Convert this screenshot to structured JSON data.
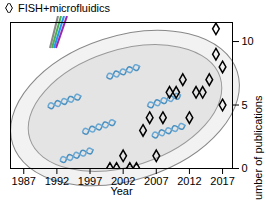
{
  "chart_data": {
    "type": "scatter",
    "series": [
      {
        "name": "FISH+microfluidics",
        "color": "#000000",
        "marker": "diamond",
        "x": [
          2000,
          2001,
          2002,
          2003,
          2004,
          2005,
          2006,
          2007,
          2008,
          2009,
          2010,
          2011,
          2012,
          2013,
          2014,
          2015,
          2016,
          2016,
          2017,
          2017
        ],
        "values": [
          0,
          0,
          1,
          0,
          0,
          3,
          4,
          1,
          4,
          6,
          6,
          7,
          4,
          6,
          6,
          7,
          11,
          9,
          8,
          5
        ]
      }
    ],
    "x_label": "Year",
    "y_label": "Number of publications",
    "xlim": [
      1985,
      2018.5
    ],
    "xticks": [
      1987,
      1992,
      1997,
      2002,
      2007,
      2012,
      2017
    ],
    "ylim": [
      0,
      11.5
    ],
    "yticks": [
      0,
      5,
      10
    ],
    "legend": "top-left",
    "grid": false
  }
}
